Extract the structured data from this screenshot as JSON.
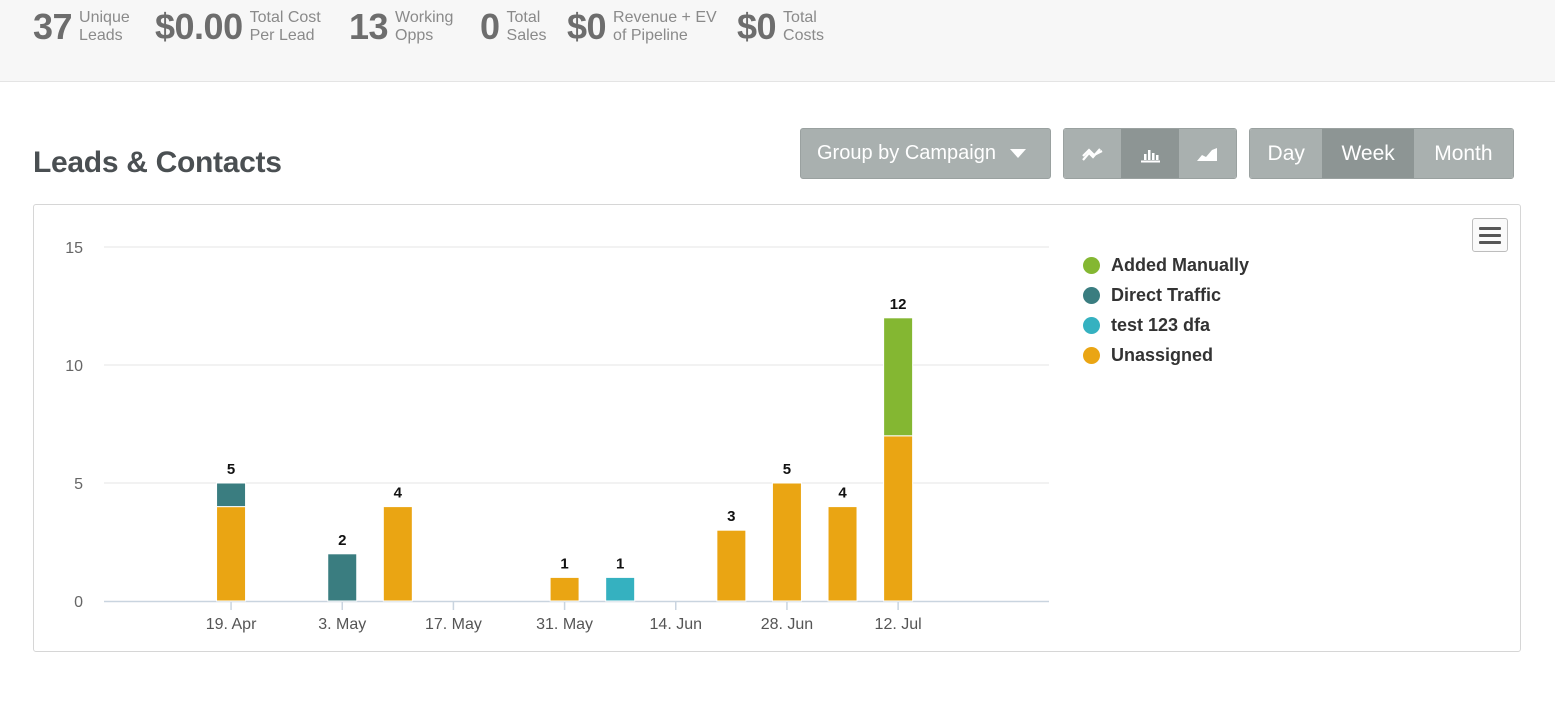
{
  "stats": [
    {
      "value": "37",
      "label1": "Unique",
      "label2": "Leads"
    },
    {
      "value": "$0.00",
      "label1": "Total Cost",
      "label2": "Per Lead"
    },
    {
      "value": "13",
      "label1": "Working",
      "label2": "Opps"
    },
    {
      "value": "0",
      "label1": "Total",
      "label2": "Sales"
    },
    {
      "value": "$0",
      "label1": "Revenue + EV",
      "label2": "of Pipeline"
    },
    {
      "value": "$0",
      "label1": "Total",
      "label2": "Costs"
    }
  ],
  "section_title": "Leads & Contacts",
  "group_by_label": "Group by Campaign",
  "chart_types": [
    {
      "icon": "line-chart-icon",
      "active": false
    },
    {
      "icon": "bar-chart-icon",
      "active": true
    },
    {
      "icon": "area-chart-icon",
      "active": false
    }
  ],
  "periods": [
    {
      "label": "Day",
      "active": false
    },
    {
      "label": "Week",
      "active": true
    },
    {
      "label": "Month",
      "active": false
    }
  ],
  "colors": {
    "added_manually": "#84b732",
    "direct_traffic": "#3a7d80",
    "test_123_dfa": "#35b1c0",
    "unassigned": "#eaa513"
  },
  "chart_data": {
    "type": "bar",
    "stacked": true,
    "title": "",
    "xlabel": "",
    "ylabel": "",
    "ylim": [
      0,
      15
    ],
    "yticks": [
      "0",
      "5",
      "10",
      "15"
    ],
    "x_tick_labels": [
      "19. Apr",
      "3. May",
      "17. May",
      "31. May",
      "14. Jun",
      "28. Jun",
      "12. Jul"
    ],
    "x_tick_dates": [
      "2018-04-19",
      "2018-05-03",
      "2018-05-17",
      "2018-05-31",
      "2018-06-14",
      "2018-06-28",
      "2018-07-12"
    ],
    "x_range": [
      "2018-04-03",
      "2018-07-31"
    ],
    "grid": true,
    "legend_position": "right",
    "series": [
      {
        "name": "Added Manually",
        "color": "#84b732",
        "points": [
          {
            "x": "2018-07-12",
            "y": 5
          }
        ]
      },
      {
        "name": "Direct Traffic",
        "color": "#3a7d80",
        "points": [
          {
            "x": "2018-04-19",
            "y": 1
          },
          {
            "x": "2018-05-03",
            "y": 2
          }
        ]
      },
      {
        "name": "test 123 dfa",
        "color": "#35b1c0",
        "points": [
          {
            "x": "2018-06-07",
            "y": 1
          }
        ]
      },
      {
        "name": "Unassigned",
        "color": "#eaa513",
        "points": [
          {
            "x": "2018-04-19",
            "y": 4
          },
          {
            "x": "2018-05-10",
            "y": 4
          },
          {
            "x": "2018-05-31",
            "y": 1
          },
          {
            "x": "2018-06-21",
            "y": 3
          },
          {
            "x": "2018-06-28",
            "y": 5
          },
          {
            "x": "2018-07-05",
            "y": 4
          },
          {
            "x": "2018-07-12",
            "y": 7
          }
        ]
      }
    ],
    "totals": [
      {
        "x": "2018-04-19",
        "label": "5"
      },
      {
        "x": "2018-05-03",
        "label": "2"
      },
      {
        "x": "2018-05-10",
        "label": "4"
      },
      {
        "x": "2018-05-31",
        "label": "1"
      },
      {
        "x": "2018-06-07",
        "label": "1"
      },
      {
        "x": "2018-06-21",
        "label": "3"
      },
      {
        "x": "2018-06-28",
        "label": "5"
      },
      {
        "x": "2018-07-05",
        "label": "4"
      },
      {
        "x": "2018-07-12",
        "label": "12"
      }
    ]
  }
}
